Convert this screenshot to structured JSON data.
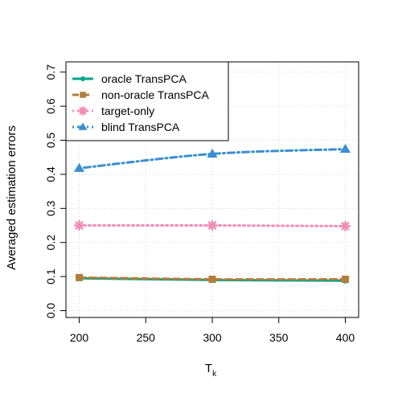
{
  "chart_data": {
    "type": "line",
    "title": "",
    "xlabel": "T",
    "xlabel_subscript": "k",
    "ylabel": "Averaged estimation errors",
    "xlim": [
      190,
      410
    ],
    "ylim": [
      -0.02,
      0.73
    ],
    "x_ticks": [
      200,
      250,
      300,
      350,
      400
    ],
    "y_ticks": [
      0.0,
      0.1,
      0.2,
      0.3,
      0.4,
      0.5,
      0.6,
      0.7
    ],
    "x_tick_labels": [
      "200",
      "250",
      "300",
      "350",
      "400"
    ],
    "y_tick_labels": [
      "0.0",
      "0.1",
      "0.2",
      "0.3",
      "0.4",
      "0.5",
      "0.6",
      "0.7"
    ],
    "grid": true,
    "legend_position": "top-left",
    "x": [
      200,
      300,
      400
    ],
    "series": [
      {
        "name": "oracle TransPCA",
        "values": [
          0.095,
          0.09,
          0.088
        ],
        "color": "#00a58a",
        "marker": "circle",
        "dash": "solid"
      },
      {
        "name": "non-oracle TransPCA",
        "values": [
          0.097,
          0.092,
          0.092
        ],
        "color": "#b07d3e",
        "marker": "square",
        "dash": "dashed"
      },
      {
        "name": "target-only",
        "values": [
          0.25,
          0.25,
          0.248
        ],
        "color": "#f28cb5",
        "marker": "asterisk",
        "dash": "dotted"
      },
      {
        "name": "blind TransPCA",
        "values": [
          0.418,
          0.46,
          0.474
        ],
        "color": "#3a8fd1",
        "marker": "triangle",
        "dash": "dotdash"
      }
    ]
  }
}
